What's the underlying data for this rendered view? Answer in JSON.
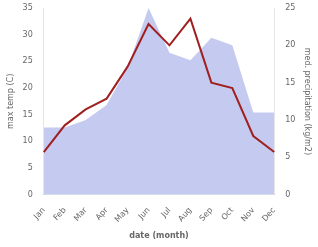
{
  "chart_data": {
    "type": "line",
    "xlabel": "date (month)",
    "ylabel": "max temp (C)",
    "y2label": "med. precipitation (kg/m2)",
    "categories": [
      "Jan",
      "Feb",
      "Mar",
      "Apr",
      "May",
      "Jun",
      "Jul",
      "Aug",
      "Sep",
      "Oct",
      "Nov",
      "Dec"
    ],
    "series": [
      {
        "type": "area",
        "axis": "y2",
        "color": "#c5caf0",
        "values": [
          9,
          9,
          10,
          12,
          17,
          25,
          19,
          18,
          21,
          20,
          11,
          11
        ]
      },
      {
        "type": "line",
        "color": "#a02020",
        "values": [
          8,
          13,
          16,
          18,
          24,
          32,
          28,
          33,
          21,
          20,
          11,
          8
        ]
      }
    ],
    "ylim": [
      0,
      35
    ],
    "yticks": [
      0,
      5,
      10,
      15,
      20,
      25,
      30,
      35
    ],
    "y2lim": [
      0,
      25
    ],
    "y2ticks": [
      0,
      5,
      10,
      15,
      20,
      25
    ],
    "grid": false
  }
}
